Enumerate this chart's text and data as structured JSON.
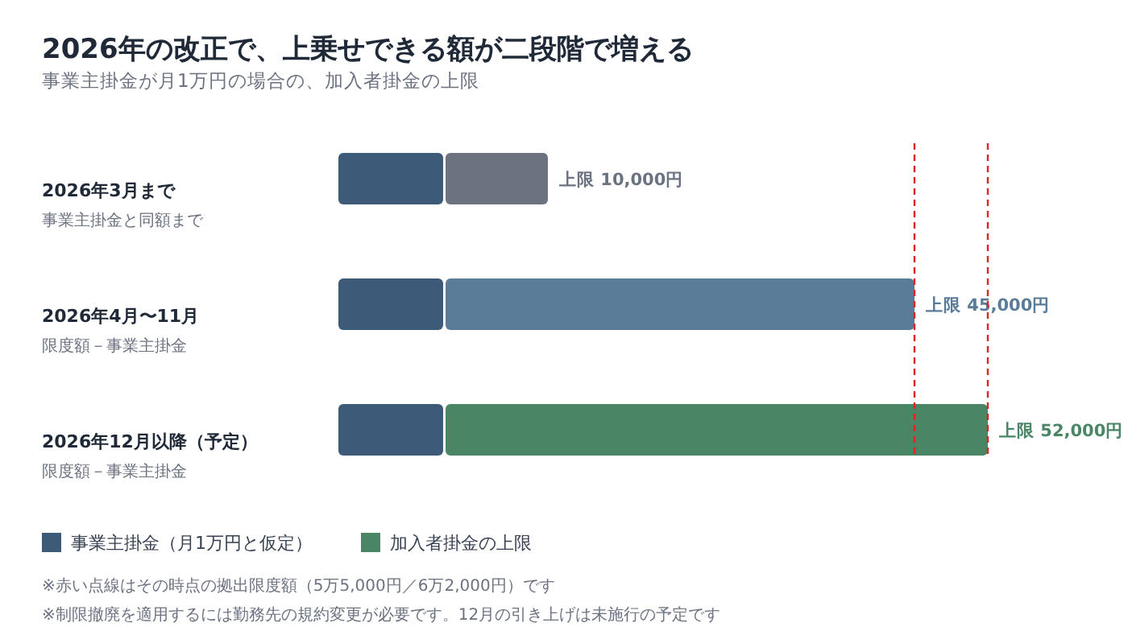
{
  "chart_data": {
    "type": "bar",
    "orientation": "horizontal",
    "stacked": true,
    "title": "2026年の改正で、上乗せできる額が二段階で増える",
    "subtitle": "事業主掛金が月1万円の場合の、加入者掛金の上限",
    "categories": [
      "2026年3月まで",
      "2026年4月〜11月",
      "2026年12月以降（予定）"
    ],
    "series": [
      {
        "name": "事業主掛金（月1万円と仮定）",
        "color": "#3d5a78",
        "values": [
          10000,
          10000,
          10000
        ]
      },
      {
        "name": "加入者掛金の上限",
        "color": "#4a8565",
        "colors": [
          "#6b7280",
          "#5b7c99",
          "#4a8565"
        ],
        "values": [
          10000,
          45000,
          52000
        ],
        "value_labels": [
          "上限 10,000円",
          "上限 45,000円",
          "上限 52,000円"
        ]
      }
    ],
    "ref_lines": [
      {
        "axis": "x",
        "value": 55000,
        "color": "#dc2626",
        "line_style": "dashed"
      },
      {
        "axis": "x",
        "value": 62000,
        "color": "#dc2626",
        "line_style": "dashed"
      }
    ],
    "legend": "bottom left",
    "annotations": [
      "事業主掛金と同額まで",
      "限度額－事業主掛金",
      "限度額－事業主掛金",
      "※赤い点線はその時点の拠出限度額（5万5,000円／6万2,000円）です",
      "※制限撤廃を適用するには勤務先の規約変更が必要です。12月の引き上げは未施行の予定です"
    ]
  }
}
